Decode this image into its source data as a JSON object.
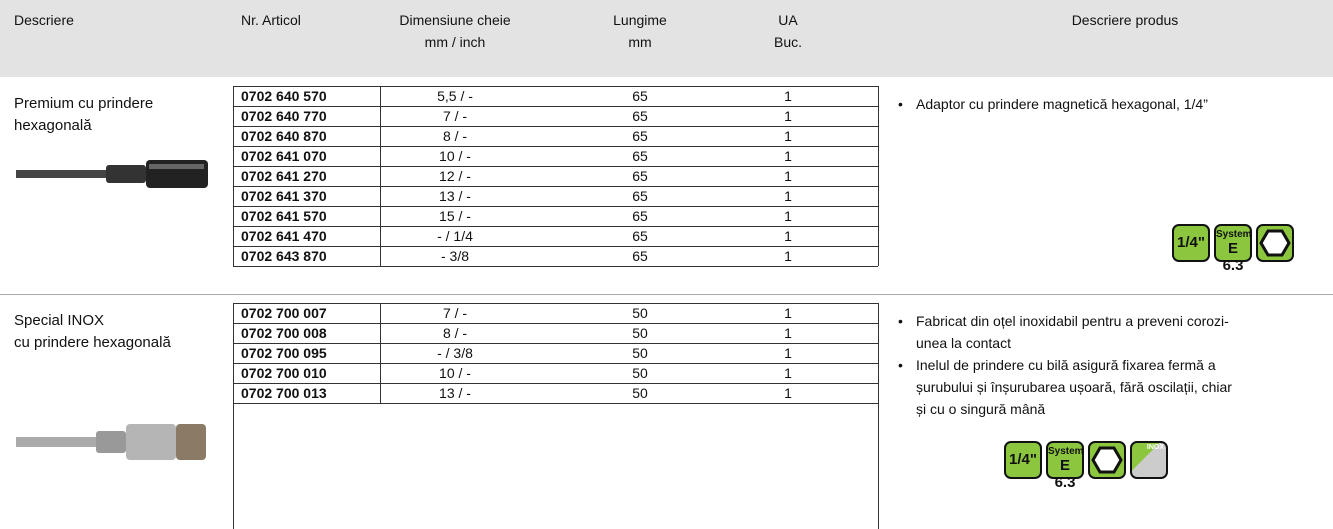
{
  "header": [
    [
      "Descriere"
    ],
    [
      "Nr. Articol"
    ],
    [
      "Dimensiune cheie",
      "mm / inch"
    ],
    [
      "Lungime",
      "mm"
    ],
    [
      "UA",
      "Buc."
    ],
    [
      "Descriere produs"
    ]
  ],
  "sections": [
    {
      "name": [
        "Premium cu prindere",
        "hexagonală"
      ],
      "rows": [
        [
          "0702 640 570",
          "5,5 / -",
          65,
          1
        ],
        [
          "0702 640 770",
          "7 / -",
          65,
          1
        ],
        [
          "0702 640 870",
          "8 / -",
          65,
          1
        ],
        [
          "0702 641 070",
          "10 / -",
          65,
          1
        ],
        [
          "0702 641 270",
          "12 / -",
          65,
          1
        ],
        [
          "0702 641 370",
          "13 / -",
          65,
          1
        ],
        [
          "0702 641 570",
          "15 / -",
          65,
          1
        ],
        [
          "0702 641 470",
          "- / 1/4",
          65,
          1
        ],
        [
          "0702 643 870",
          "- 3/8",
          65,
          1
        ]
      ],
      "bullets": [
        [
          "Adaptor cu prindere magnetică hexagonal, 1/4”"
        ]
      ],
      "icons": {
        "size": "1/4\"",
        "system": [
          "System",
          "E 6.3"
        ]
      }
    },
    {
      "name": [
        "Special INOX",
        "cu prindere hexagonală"
      ],
      "rows": [
        [
          "0702 700 007",
          "7 / -",
          50,
          1
        ],
        [
          "0702 700 008",
          "8 / -",
          50,
          1
        ],
        [
          "0702 700 095",
          "- / 3/8",
          50,
          1
        ],
        [
          "0702 700 010",
          "10 / -",
          50,
          1
        ],
        [
          "0702 700 013",
          "13 / -",
          50,
          1
        ]
      ],
      "bullets": [
        [
          "Fabricat din oțel inoxidabil pentru a preveni corozi-",
          "unea la contact"
        ],
        [
          "Inelul de prindere cu bilă asigură fixarea fermă a",
          "șurubului și înșurubarea ușoară, fără oscilații, chiar",
          "și cu o singură mână"
        ]
      ],
      "icons": {
        "size": "1/4\"",
        "system": [
          "System",
          "E 6.3"
        ],
        "inox": "INOX"
      }
    }
  ]
}
